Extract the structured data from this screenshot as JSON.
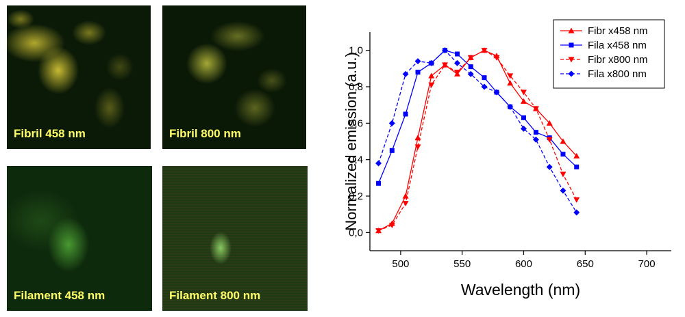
{
  "panels": [
    {
      "label": "Fibril 458 nm",
      "label_color": "#ffff66"
    },
    {
      "label": "Fibril 800 nm",
      "label_color": "#ffff66"
    },
    {
      "label": "Filament 458 nm",
      "label_color": "#ffff66"
    },
    {
      "label": "Filament 800 nm",
      "label_color": "#ffff66"
    }
  ],
  "chart_data": {
    "type": "line",
    "title": "",
    "xlabel": "Wavelength (nm)",
    "ylabel": "Normalized emission (a.u.)",
    "xlim": [
      475,
      720
    ],
    "ylim": [
      -0.1,
      1.1
    ],
    "xticks": [
      500,
      550,
      600,
      650,
      700
    ],
    "xticklabels": [
      "500",
      "550",
      "600",
      "650",
      "700"
    ],
    "yticks": [
      0,
      0.2,
      0.4,
      0.6,
      0.8,
      1.0
    ],
    "yticklabels": [
      "0,0",
      "0,2",
      "0,4",
      "0,6",
      "0,8",
      "1,0"
    ],
    "legend_position": "top-right",
    "series": [
      {
        "name": "Fibr x458 nm",
        "color": "#ff0000",
        "dashed": false,
        "marker": "triangle-up",
        "x": [
          482,
          493,
          504,
          514,
          525,
          536,
          546,
          557,
          568,
          578,
          589,
          600,
          610,
          621,
          632,
          643
        ],
        "y": [
          0.01,
          0.05,
          0.2,
          0.52,
          0.86,
          0.92,
          0.87,
          0.96,
          1.0,
          0.97,
          0.82,
          0.72,
          0.68,
          0.6,
          0.5,
          0.42
        ]
      },
      {
        "name": "Fila x458 nm",
        "color": "#0000ff",
        "dashed": false,
        "marker": "square",
        "x": [
          482,
          493,
          504,
          514,
          525,
          536,
          546,
          557,
          568,
          578,
          589,
          600,
          610,
          621,
          632,
          643
        ],
        "y": [
          0.27,
          0.45,
          0.65,
          0.88,
          0.93,
          1.0,
          0.98,
          0.91,
          0.85,
          0.77,
          0.69,
          0.63,
          0.55,
          0.52,
          0.43,
          0.36
        ]
      },
      {
        "name": "Fibr x800 nm",
        "color": "#ff0000",
        "dashed": true,
        "marker": "triangle-down",
        "x": [
          482,
          493,
          504,
          514,
          525,
          536,
          546,
          557,
          568,
          578,
          589,
          600,
          610,
          621,
          632,
          643
        ],
        "y": [
          0.01,
          0.04,
          0.16,
          0.47,
          0.81,
          0.92,
          0.88,
          0.96,
          1.0,
          0.96,
          0.86,
          0.77,
          0.68,
          0.51,
          0.32,
          0.18
        ]
      },
      {
        "name": "Fila x800 nm",
        "color": "#0000ff",
        "dashed": true,
        "marker": "diamond",
        "x": [
          482,
          493,
          504,
          514,
          525,
          536,
          546,
          557,
          568,
          578,
          589,
          600,
          610,
          621,
          632,
          643
        ],
        "y": [
          0.38,
          0.6,
          0.87,
          0.94,
          0.93,
          1.0,
          0.93,
          0.87,
          0.8,
          0.77,
          0.69,
          0.57,
          0.51,
          0.36,
          0.23,
          0.11
        ]
      }
    ]
  }
}
